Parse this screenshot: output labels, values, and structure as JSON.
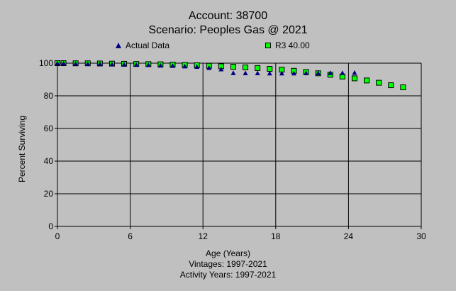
{
  "chart_data": {
    "type": "scatter",
    "title": "Account: 38700",
    "subtitle": "Scenario: Peoples Gas @ 2021",
    "xlabel": "Age (Years)",
    "ylabel": "Percent Surviving",
    "footnotes": [
      "Vintages: 1997-2021",
      "Activity Years: 1997-2021"
    ],
    "xlim": [
      0,
      30
    ],
    "ylim": [
      0,
      100
    ],
    "xticks": [
      "0",
      "6",
      "12",
      "18",
      "24",
      "30"
    ],
    "yticks": [
      "0",
      "20",
      "40",
      "60",
      "80",
      "100"
    ],
    "grid": true,
    "legend_placement": "top",
    "series": [
      {
        "name": "Actual Data",
        "marker": "triangle",
        "color": "#000080",
        "points": [
          [
            0,
            100
          ],
          [
            0.5,
            100
          ],
          [
            1.5,
            99.8
          ],
          [
            2.5,
            99.7
          ],
          [
            3.5,
            99.6
          ],
          [
            4.5,
            99.4
          ],
          [
            5.5,
            99.3
          ],
          [
            6.5,
            99.1
          ],
          [
            7.5,
            98.9
          ],
          [
            8.5,
            98.6
          ],
          [
            9.5,
            98.4
          ],
          [
            10.5,
            98.1
          ],
          [
            11.5,
            97.8
          ],
          [
            12.5,
            97.1
          ],
          [
            13.5,
            96.3
          ],
          [
            14.5,
            94
          ],
          [
            15.5,
            93.9
          ],
          [
            16.5,
            93.9
          ],
          [
            17.5,
            93.8
          ],
          [
            18.5,
            93.8
          ],
          [
            19.5,
            93.8
          ],
          [
            20.5,
            93.9
          ],
          [
            21.5,
            93.9
          ],
          [
            22.5,
            94
          ],
          [
            23.5,
            94
          ],
          [
            24.5,
            94.2
          ]
        ]
      },
      {
        "name": "R3 40.00",
        "marker": "square",
        "color": "#00ff00",
        "points": [
          [
            0,
            100
          ],
          [
            0.5,
            100
          ],
          [
            1.5,
            99.9
          ],
          [
            2.5,
            99.9
          ],
          [
            3.5,
            99.8
          ],
          [
            4.5,
            99.7
          ],
          [
            5.5,
            99.6
          ],
          [
            6.5,
            99.5
          ],
          [
            7.5,
            99.4
          ],
          [
            8.5,
            99.3
          ],
          [
            9.5,
            99.1
          ],
          [
            10.5,
            98.9
          ],
          [
            11.5,
            98.7
          ],
          [
            12.5,
            98.4
          ],
          [
            13.5,
            98.1
          ],
          [
            14.5,
            97.8
          ],
          [
            15.5,
            97.4
          ],
          [
            16.5,
            97
          ],
          [
            17.5,
            96.5
          ],
          [
            18.5,
            96
          ],
          [
            19.5,
            95.3
          ],
          [
            20.5,
            94.6
          ],
          [
            21.5,
            93.8
          ],
          [
            22.5,
            92.9
          ],
          [
            23.5,
            91.8
          ],
          [
            24.5,
            90.7
          ],
          [
            25.5,
            89.4
          ],
          [
            26.5,
            88
          ],
          [
            27.5,
            86.5
          ],
          [
            28.5,
            85.2
          ]
        ]
      }
    ]
  }
}
